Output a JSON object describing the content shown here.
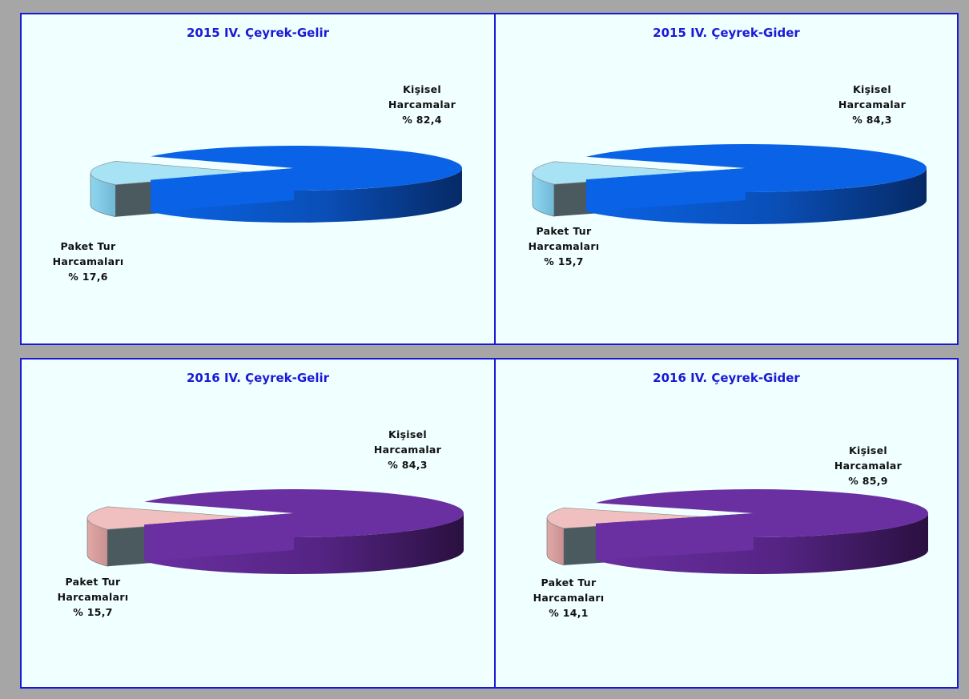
{
  "colors": {
    "gelir_major": "#0a63e6",
    "gelir_minor": "#8fd6f0",
    "gider_major": "#6a2fa0",
    "gider_minor": "#e0aaa8",
    "border": "#1a1ad6",
    "panel_bg": "#f0ffff"
  },
  "chart_data": [
    {
      "type": "pie",
      "title": "2015 IV. Çeyrek-Gelir",
      "slices": [
        {
          "label_line1": "Kişisel",
          "label_line2": "Harcamalar",
          "value_text": "% 82,4",
          "value": 82.4
        },
        {
          "label_line1": "Paket Tur",
          "label_line2": "Harcamaları",
          "value_text": "% 17,6",
          "value": 17.6
        }
      ]
    },
    {
      "type": "pie",
      "title": "2015 IV. Çeyrek-Gider",
      "slices": [
        {
          "label_line1": "Kişisel",
          "label_line2": "Harcamalar",
          "value_text": "% 84,3",
          "value": 84.3
        },
        {
          "label_line1": "Paket Tur",
          "label_line2": "Harcamaları",
          "value_text": "% 15,7",
          "value": 15.7
        }
      ]
    },
    {
      "type": "pie",
      "title": "2016 IV. Çeyrek-Gelir",
      "slices": [
        {
          "label_line1": "Kişisel",
          "label_line2": "Harcamalar",
          "value_text": "% 84,3",
          "value": 84.3
        },
        {
          "label_line1": "Paket Tur",
          "label_line2": "Harcamaları",
          "value_text": "% 15,7",
          "value": 15.7
        }
      ]
    },
    {
      "type": "pie",
      "title": "2016 IV. Çeyrek-Gider",
      "slices": [
        {
          "label_line1": "Kişisel",
          "label_line2": "Harcamalar",
          "value_text": "% 85,9",
          "value": 85.9
        },
        {
          "label_line1": "Paket Tur",
          "label_line2": "Harcamaları",
          "value_text": "% 14,1",
          "value": 14.1
        }
      ]
    }
  ]
}
